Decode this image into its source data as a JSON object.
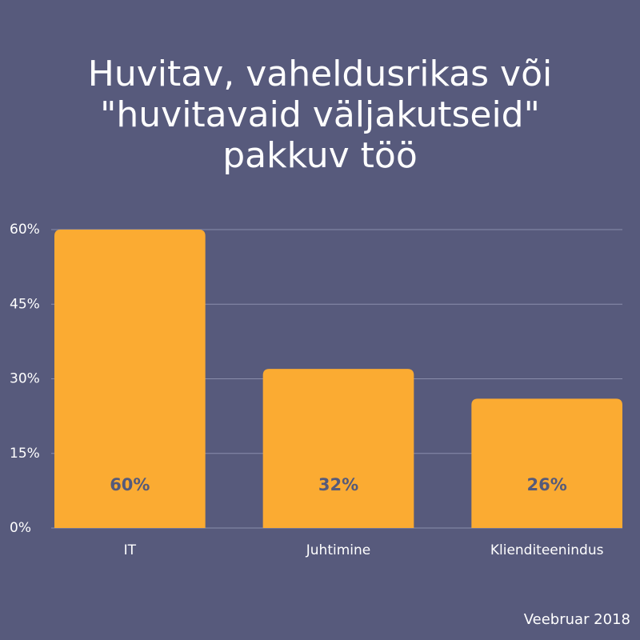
{
  "chart_data": {
    "type": "bar",
    "title": [
      "Huvitav, vaheldusrikas või",
      "\"huvitavaid väljakutseid\"",
      "pakkuv töö"
    ],
    "categories": [
      "IT",
      "Juhtimine",
      "Klienditeenindus"
    ],
    "values": [
      60,
      32,
      26
    ],
    "value_labels": [
      "60%",
      "32%",
      "26%"
    ],
    "color": "#fbab32",
    "ylim": [
      0,
      60
    ],
    "yticks": [
      {
        "value": 0,
        "label": "0%"
      },
      {
        "value": 15,
        "label": "15%"
      },
      {
        "value": 30,
        "label": "30%"
      },
      {
        "value": 45,
        "label": "45%"
      },
      {
        "value": 60,
        "label": "60%"
      }
    ],
    "grid": true,
    "note": "Veebruar 2018"
  }
}
